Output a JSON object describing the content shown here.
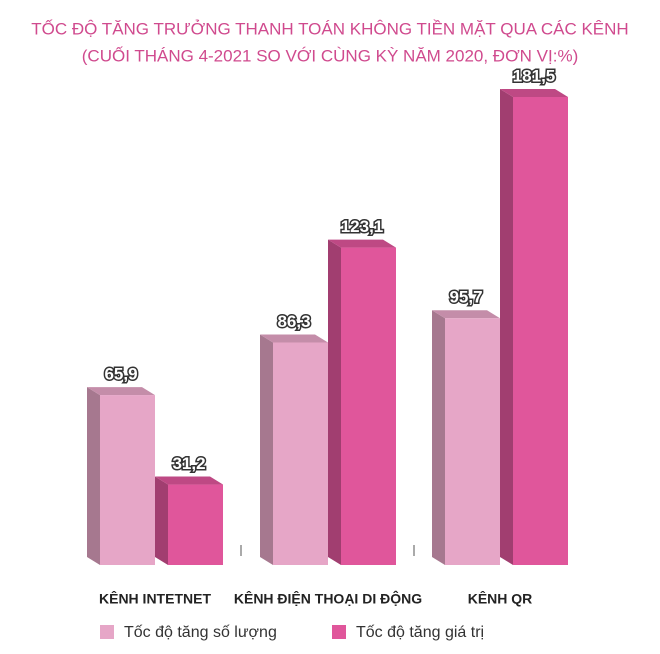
{
  "chart_data": {
    "type": "bar",
    "title": "TỐC ĐỘ TĂNG TRƯỞNG THANH TOÁN KHÔNG TIỀN MẶT QUA CÁC KÊNH",
    "subtitle": "(CUỐI THÁNG 4-2021 SO VỚI CÙNG KỲ NĂM 2020, ĐƠN VỊ:%)",
    "categories": [
      "KÊNH INTETNET",
      "KÊNH ĐIỆN THOẠI DI ĐỘNG",
      "KÊNH QR"
    ],
    "series": [
      {
        "name": "Tốc độ tăng số lượng",
        "color": "#e6a6c7",
        "values": [
          65.9,
          86.3,
          95.7
        ],
        "value_labels": [
          "65,9",
          "86,3",
          "95,7"
        ]
      },
      {
        "name": "Tốc độ tăng giá trị",
        "color": "#e0569b",
        "values": [
          31.2,
          123.1,
          181.5
        ],
        "value_labels": [
          "31,2",
          "123,1",
          "181,5"
        ]
      }
    ]
  }
}
